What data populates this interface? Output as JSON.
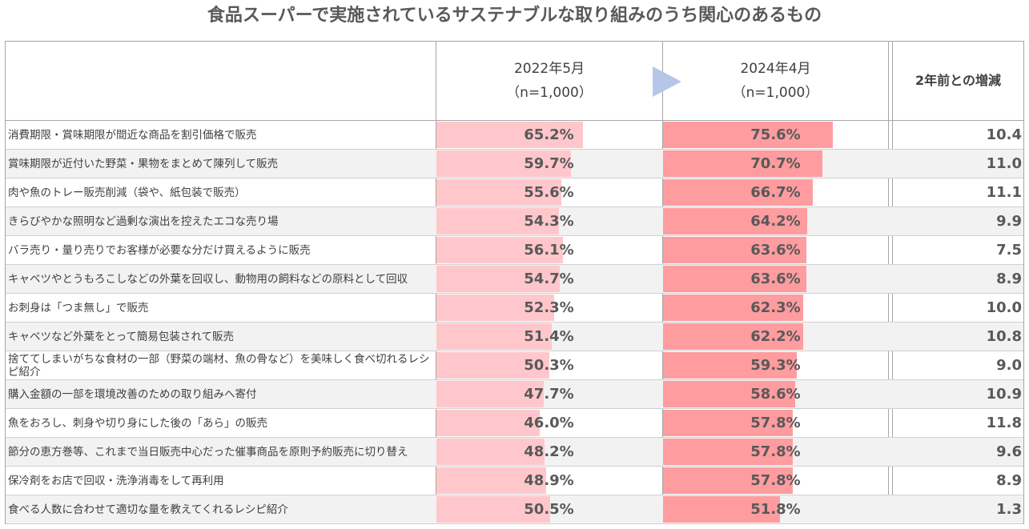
{
  "chart_data": {
    "type": "table",
    "title": "食品スーパーで実施されているサステナブルな取り組みのうち関心のあるもの",
    "columns": [
      {
        "label": "2022年5月",
        "sub": "（n=1,000）"
      },
      {
        "label": "2024年4月",
        "sub": "（n=1,000）"
      },
      {
        "label": "2年前との増減"
      }
    ],
    "series_colors": {
      "y2022": "#ffc7cc",
      "y2024": "#ff9c9f",
      "arrow": "#b4c7e7"
    },
    "bar_scale_max": 100,
    "rows": [
      {
        "label": "消費期限・賞味期限が間近な商品を割引価格で販売",
        "y2022": 65.2,
        "y2022_text": "65.2%",
        "y2024": 75.6,
        "y2024_text": "75.6%",
        "change": "10.4"
      },
      {
        "label": "賞味期限が近付いた野菜・果物をまとめて陳列して販売",
        "y2022": 59.7,
        "y2022_text": "59.7%",
        "y2024": 70.7,
        "y2024_text": "70.7%",
        "change": "11.0"
      },
      {
        "label": "肉や魚のトレー販売削減（袋や、紙包装で販売）",
        "y2022": 55.6,
        "y2022_text": "55.6%",
        "y2024": 66.7,
        "y2024_text": "66.7%",
        "change": "11.1"
      },
      {
        "label": "きらびやかな照明など過剰な演出を控えたエコな売り場",
        "y2022": 54.3,
        "y2022_text": "54.3%",
        "y2024": 64.2,
        "y2024_text": "64.2%",
        "change": "9.9"
      },
      {
        "label": "バラ売り・量り売りでお客様が必要な分だけ買えるように販売",
        "y2022": 56.1,
        "y2022_text": "56.1%",
        "y2024": 63.6,
        "y2024_text": "63.6%",
        "change": "7.5"
      },
      {
        "label": "キャベツやとうもろこしなどの外葉を回収し、動物用の飼料などの原料として回収",
        "y2022": 54.7,
        "y2022_text": "54.7%",
        "y2024": 63.6,
        "y2024_text": "63.6%",
        "change": "8.9"
      },
      {
        "label": "お刺身は「つま無し」で販売",
        "y2022": 52.3,
        "y2022_text": "52.3%",
        "y2024": 62.3,
        "y2024_text": "62.3%",
        "change": "10.0"
      },
      {
        "label": "キャベツなど外葉をとって簡易包装されて販売",
        "y2022": 51.4,
        "y2022_text": "51.4%",
        "y2024": 62.2,
        "y2024_text": "62.2%",
        "change": "10.8"
      },
      {
        "label": "捨ててしまいがちな食材の一部（野菜の端材、魚の骨など）を美味しく食べ切れるレシピ紹介",
        "y2022": 50.3,
        "y2022_text": "50.3%",
        "y2024": 59.3,
        "y2024_text": "59.3%",
        "change": "9.0"
      },
      {
        "label": "購入金額の一部を環境改善のための取り組みへ寄付",
        "y2022": 47.7,
        "y2022_text": "47.7%",
        "y2024": 58.6,
        "y2024_text": "58.6%",
        "change": "10.9"
      },
      {
        "label": "魚をおろし、刺身や切り身にした後の「あら」の販売",
        "y2022": 46.0,
        "y2022_text": "46.0%",
        "y2024": 57.8,
        "y2024_text": "57.8%",
        "change": "11.8"
      },
      {
        "label": "節分の恵方巻等、これまで当日販売中心だった催事商品を原則予約販売に切り替え",
        "y2022": 48.2,
        "y2022_text": "48.2%",
        "y2024": 57.8,
        "y2024_text": "57.8%",
        "change": "9.6"
      },
      {
        "label": "保冷剤をお店で回収・洗浄消毒をして再利用",
        "y2022": 48.9,
        "y2022_text": "48.9%",
        "y2024": 57.8,
        "y2024_text": "57.8%",
        "change": "8.9"
      },
      {
        "label": "食べる人数に合わせて適切な量を教えてくれるレシピ紹介",
        "y2022": 50.5,
        "y2022_text": "50.5%",
        "y2024": 51.8,
        "y2024_text": "51.8%",
        "change": "1.3"
      }
    ]
  }
}
